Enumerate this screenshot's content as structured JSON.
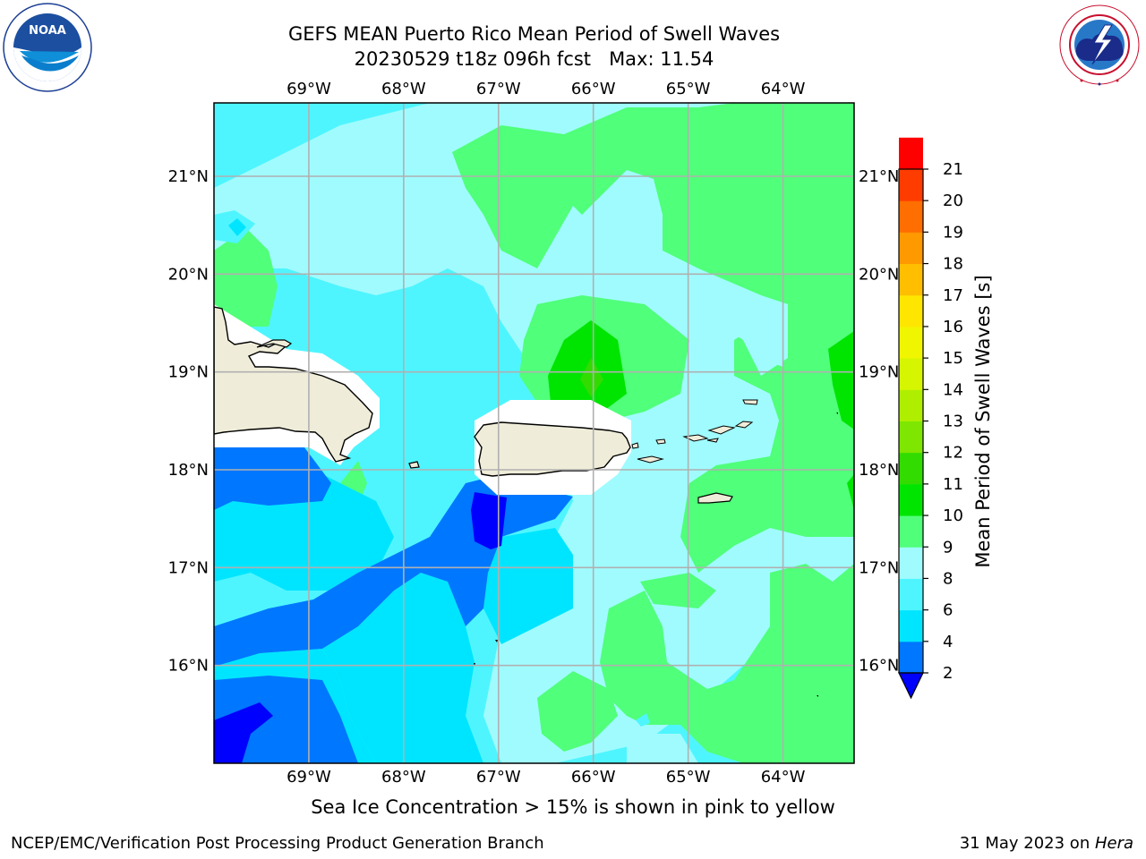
{
  "title": {
    "line1": "GEFS MEAN Puerto Rico Mean Period of Swell Waves",
    "line2": "20230529 t18z 096h fcst   Max: 11.54"
  },
  "subtitle": "Sea Ice Concentration > 15% is shown in pink to yellow",
  "footer": {
    "left": "NCEP/EMC/Verification Post Processing Product Generation Branch",
    "date": "31 May 2023 on ",
    "host": "Hera"
  },
  "logos": {
    "noaa": {
      "text": "NOAA",
      "ring_text": "NATIONAL OCEANIC AND ATMOSPHERIC ADMINISTRATION · U.S. DEPARTMENT OF COMMERCE"
    },
    "nws": {
      "ring_text": "NATIONAL WEATHER SERVICE"
    }
  },
  "map": {
    "lon_labels": [
      "69°W",
      "68°W",
      "67°W",
      "66°W",
      "65°W",
      "64°W"
    ],
    "lat_labels": [
      "21°N",
      "20°N",
      "19°N",
      "18°N",
      "17°N",
      "16°N"
    ],
    "lon_values": [
      -69,
      -68,
      -67,
      -66,
      -65,
      -64
    ],
    "lat_values": [
      21,
      20,
      19,
      18,
      17,
      16
    ],
    "extent": {
      "lon_min": -70.0,
      "lon_max": -63.25,
      "lat_min": 15.0,
      "lat_max": 21.75
    },
    "grid": true,
    "land_color": "#efedd9",
    "coast_color": "#000000"
  },
  "colorbar": {
    "label": "Mean Period of Swell Waves [s]",
    "ticks": [
      "2",
      "4",
      "6",
      "8",
      "9",
      "10",
      "11",
      "12",
      "13",
      "14",
      "15",
      "16",
      "17",
      "18",
      "19",
      "20",
      "21"
    ],
    "colors": [
      "#0077ff",
      "#00e5ff",
      "#4ef5ff",
      "#a0fbff",
      "#50ff7a",
      "#00e500",
      "#32dc00",
      "#7ee600",
      "#b0ee00",
      "#d6f500",
      "#f0f500",
      "#ffe600",
      "#ffbe00",
      "#ff9900",
      "#ff6e00",
      "#ff3c00",
      "#ff0000"
    ],
    "under_color": "#0000ff"
  }
}
